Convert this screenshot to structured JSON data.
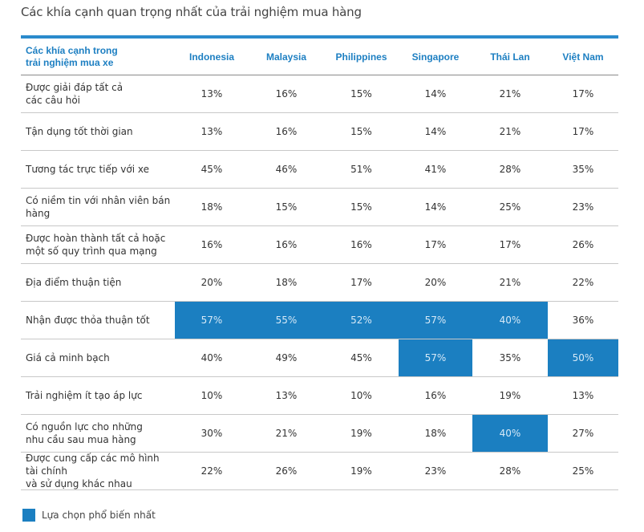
{
  "title": "Các khía cạnh quan trọng nhất của trải nghiệm mua hàng",
  "table": {
    "corner": "Các khía cạnh trong\ntrải nghiệm mua xe",
    "columns": [
      "Indonesia",
      "Malaysia",
      "Philippines",
      "Singapore",
      "Thái Lan",
      "Việt Nam"
    ],
    "rows": [
      {
        "label": "Được giải đáp tất cả\ncác câu hỏi",
        "values": [
          "13%",
          "16%",
          "15%",
          "14%",
          "21%",
          "17%"
        ],
        "highlight": [
          false,
          false,
          false,
          false,
          false,
          false
        ]
      },
      {
        "label": "Tận dụng tốt thời gian",
        "values": [
          "13%",
          "16%",
          "15%",
          "14%",
          "21%",
          "17%"
        ],
        "highlight": [
          false,
          false,
          false,
          false,
          false,
          false
        ]
      },
      {
        "label": "Tương tác trực tiếp với xe",
        "values": [
          "45%",
          "46%",
          "51%",
          "41%",
          "28%",
          "35%"
        ],
        "highlight": [
          false,
          false,
          false,
          false,
          false,
          false
        ]
      },
      {
        "label": "Có niềm tin với nhân viên bán hàng",
        "values": [
          "18%",
          "15%",
          "15%",
          "14%",
          "25%",
          "23%"
        ],
        "highlight": [
          false,
          false,
          false,
          false,
          false,
          false
        ]
      },
      {
        "label": "Được hoàn thành tất cả hoặc\nmột số quy trình qua mạng",
        "values": [
          "16%",
          "16%",
          "16%",
          "17%",
          "17%",
          "26%"
        ],
        "highlight": [
          false,
          false,
          false,
          false,
          false,
          false
        ]
      },
      {
        "label": "Địa điểm thuận tiện",
        "values": [
          "20%",
          "18%",
          "17%",
          "20%",
          "21%",
          "22%"
        ],
        "highlight": [
          false,
          false,
          false,
          false,
          false,
          false
        ]
      },
      {
        "label": "Nhận được thỏa thuận tốt",
        "values": [
          "57%",
          "55%",
          "52%",
          "57%",
          "40%",
          "36%"
        ],
        "highlight": [
          true,
          true,
          true,
          true,
          true,
          false
        ]
      },
      {
        "label": "Giá cả minh bạch",
        "values": [
          "40%",
          "49%",
          "45%",
          "57%",
          "35%",
          "50%"
        ],
        "highlight": [
          false,
          false,
          false,
          true,
          false,
          true
        ]
      },
      {
        "label": "Trải nghiệm ít tạo áp lực",
        "values": [
          "10%",
          "13%",
          "10%",
          "16%",
          "19%",
          "13%"
        ],
        "highlight": [
          false,
          false,
          false,
          false,
          false,
          false
        ]
      },
      {
        "label": "Có nguồn lực cho những\nnhu cầu sau mua hàng",
        "values": [
          "30%",
          "21%",
          "19%",
          "18%",
          "40%",
          "27%"
        ],
        "highlight": [
          false,
          false,
          false,
          false,
          true,
          false
        ]
      },
      {
        "label": "Được cung cấp các mô hình tài chính\nvà sử dụng khác nhau",
        "values": [
          "22%",
          "26%",
          "19%",
          "23%",
          "28%",
          "25%"
        ],
        "highlight": [
          false,
          false,
          false,
          false,
          false,
          false
        ]
      }
    ]
  },
  "legend": {
    "label": "Lựa chọn phổ biến nhất",
    "color": "#1b7fc1"
  }
}
